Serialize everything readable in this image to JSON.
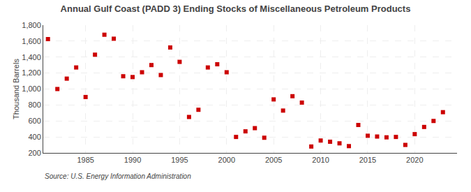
{
  "chart_data": {
    "type": "scatter",
    "title": "Annual Gulf Coast (PADD 3) Ending Stocks of Miscellaneous Petroleum Products",
    "ylabel": "Thousand Barrels",
    "source": "Source: U.S. Energy Information Administration",
    "x": [
      1981,
      1982,
      1983,
      1984,
      1985,
      1986,
      1987,
      1988,
      1989,
      1990,
      1991,
      1992,
      1993,
      1994,
      1995,
      1996,
      1997,
      1998,
      1999,
      2000,
      2001,
      2002,
      2003,
      2004,
      2005,
      2006,
      2007,
      2008,
      2009,
      2010,
      2011,
      2012,
      2013,
      2014,
      2015,
      2016,
      2017,
      2018,
      2019,
      2020,
      2021,
      2022,
      2023
    ],
    "values": [
      1625,
      1000,
      1130,
      1270,
      900,
      1430,
      1680,
      1630,
      1160,
      1150,
      1210,
      1300,
      1175,
      1520,
      1340,
      650,
      740,
      1270,
      1310,
      1210,
      400,
      470,
      510,
      390,
      870,
      730,
      910,
      830,
      280,
      355,
      340,
      320,
      285,
      550,
      415,
      405,
      395,
      400,
      300,
      435,
      525,
      600,
      710
    ],
    "color": "#cc0000",
    "marker": "square",
    "xlim": [
      1980.5,
      2024.5
    ],
    "xticks": [
      1985,
      1990,
      1995,
      2000,
      2005,
      2010,
      2015,
      2020
    ],
    "ylim": [
      200,
      1800
    ],
    "yticks": [
      200,
      400,
      600,
      800,
      {
        "value": 1000,
        "label": "1,000"
      },
      {
        "value": 1200,
        "label": "1,200"
      },
      {
        "value": 1400,
        "label": "1,400"
      },
      {
        "value": 1600,
        "label": "1,600"
      },
      {
        "value": 1800,
        "label": "1,800"
      }
    ],
    "grid": true
  }
}
